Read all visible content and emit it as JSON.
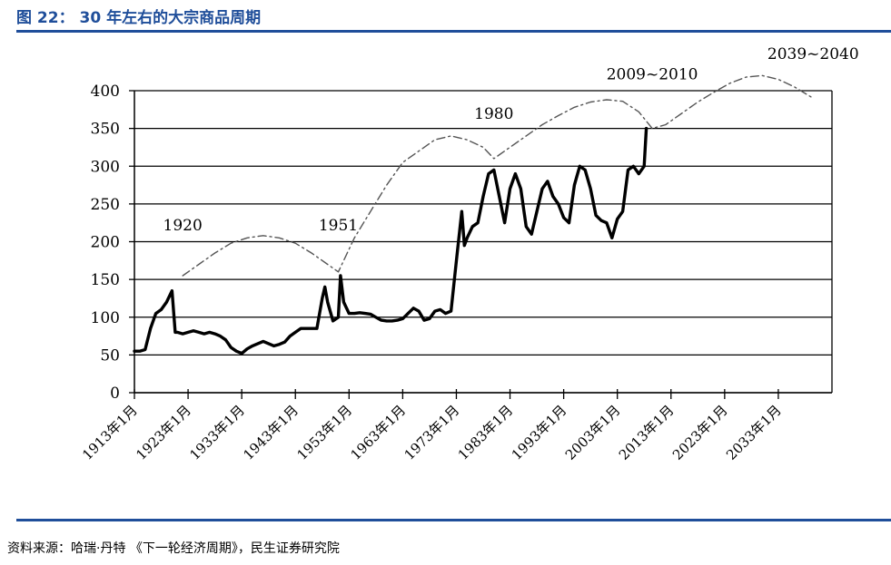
{
  "header": {
    "title": "图 22：  30 年左右的大宗商品周期"
  },
  "footer": {
    "source": "资料来源：哈瑞·丹特 《下一轮经济周期》，民生证券研究院"
  },
  "colors": {
    "accent": "#1f4e9a",
    "price_line": "#000000",
    "cycle_line": "#555555"
  },
  "chart_data": {
    "type": "line",
    "title": "",
    "xlabel": "",
    "ylabel": "",
    "ylim": [
      0,
      400
    ],
    "yticks": [
      0,
      50,
      100,
      150,
      200,
      250,
      300,
      350,
      400
    ],
    "xlim": [
      1913,
      2043
    ],
    "xticks": [
      {
        "year": 1913,
        "label": "1913年1月"
      },
      {
        "year": 1923,
        "label": "1923年1月"
      },
      {
        "year": 1933,
        "label": "1933年1月"
      },
      {
        "year": 1943,
        "label": "1943年1月"
      },
      {
        "year": 1953,
        "label": "1953年1月"
      },
      {
        "year": 1963,
        "label": "1963年1月"
      },
      {
        "year": 1973,
        "label": "1973年1月"
      },
      {
        "year": 1983,
        "label": "1983年1月"
      },
      {
        "year": 1993,
        "label": "1993年1月"
      },
      {
        "year": 2003,
        "label": "2003年1月"
      },
      {
        "year": 2013,
        "label": "2013年1月"
      },
      {
        "year": 2023,
        "label": "2023年1月"
      },
      {
        "year": 2033,
        "label": "2033年1月"
      }
    ],
    "grid": true,
    "series": [
      {
        "style": "solid-thick",
        "x": [
          1913,
          1914,
          1915,
          1916,
          1917,
          1918,
          1919,
          1920,
          1920.6,
          1921,
          1922,
          1923,
          1924,
          1925,
          1926,
          1927,
          1928,
          1929,
          1930,
          1931,
          1932,
          1933,
          1934,
          1935,
          1936,
          1937,
          1938,
          1939,
          1940,
          1941,
          1942,
          1943,
          1944,
          1945,
          1946,
          1947,
          1948,
          1948.5,
          1949,
          1950,
          1951,
          1951.4,
          1952,
          1953,
          1954,
          1955,
          1956,
          1957,
          1958,
          1959,
          1960,
          1961,
          1962,
          1963,
          1964,
          1965,
          1966,
          1967,
          1968,
          1969,
          1970,
          1971,
          1972,
          1973,
          1974,
          1974.5,
          1975,
          1976,
          1977,
          1978,
          1979,
          1980,
          1981,
          1982,
          1983,
          1984,
          1985,
          1986,
          1987,
          1988,
          1989,
          1990,
          1991,
          1992,
          1993,
          1994,
          1995,
          1996,
          1997,
          1998,
          1999,
          2000,
          2001,
          2002,
          2003,
          2004,
          2005,
          2006,
          2007,
          2008,
          2008.4
        ],
        "y": [
          55,
          55,
          57,
          85,
          105,
          110,
          120,
          135,
          80,
          80,
          78,
          80,
          82,
          80,
          78,
          80,
          78,
          75,
          70,
          60,
          55,
          52,
          58,
          62,
          65,
          68,
          65,
          62,
          64,
          67,
          75,
          80,
          85,
          85,
          85,
          85,
          125,
          140,
          120,
          95,
          100,
          155,
          120,
          105,
          105,
          106,
          105,
          104,
          100,
          96,
          95,
          95,
          96,
          98,
          105,
          112,
          108,
          96,
          98,
          108,
          110,
          105,
          108,
          175,
          240,
          195,
          205,
          220,
          225,
          260,
          290,
          295,
          260,
          225,
          270,
          290,
          270,
          220,
          210,
          240,
          270,
          280,
          260,
          250,
          232,
          225,
          275,
          300,
          295,
          270,
          235,
          228,
          225,
          205,
          230,
          240,
          295,
          300,
          290,
          300,
          350
        ]
      },
      {
        "style": "dash-dot",
        "x": [
          1922,
          1925,
          1928,
          1931,
          1934,
          1937,
          1940,
          1943,
          1946,
          1949,
          1951,
          1954,
          1957,
          1960,
          1963,
          1966,
          1969,
          1972,
          1975,
          1978,
          1980,
          1983,
          1986,
          1989,
          1992,
          1995,
          1998,
          2001,
          2004,
          2007,
          2009.5,
          2012,
          2015,
          2018,
          2021,
          2024,
          2027,
          2030,
          2033,
          2036,
          2039.5
        ],
        "y": [
          155,
          170,
          185,
          198,
          205,
          208,
          205,
          198,
          185,
          170,
          160,
          205,
          240,
          275,
          305,
          320,
          335,
          340,
          335,
          325,
          310,
          325,
          340,
          355,
          367,
          378,
          385,
          388,
          386,
          372,
          350,
          355,
          370,
          385,
          398,
          410,
          418,
          420,
          415,
          405,
          390
        ]
      }
    ],
    "annotations": [
      {
        "text": "1920",
        "x": 1922,
        "y": 215
      },
      {
        "text": "1951",
        "x": 1951,
        "y": 215
      },
      {
        "text": "1980",
        "x": 1980,
        "y": 363
      },
      {
        "text": "2009~2010",
        "x": 2009.5,
        "y": 415
      },
      {
        "text": "2039~2040",
        "x": 2039.5,
        "y": 442
      }
    ]
  }
}
